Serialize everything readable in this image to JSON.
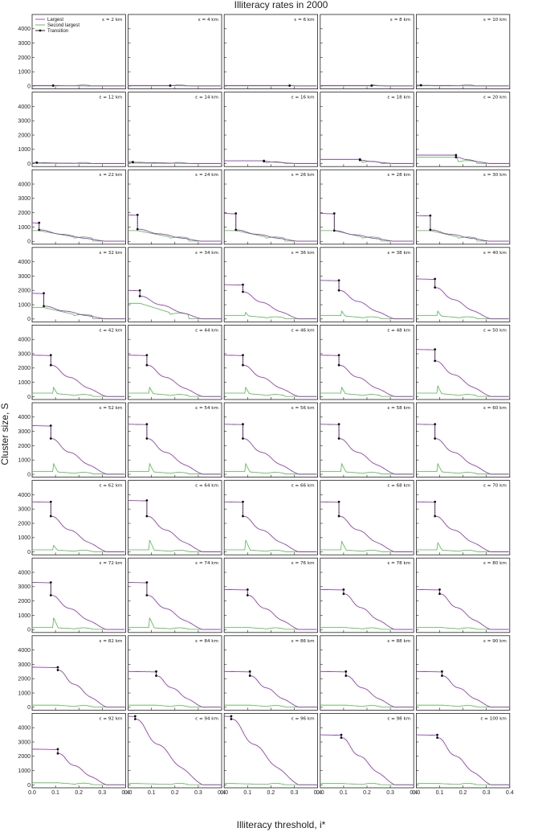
{
  "figure": {
    "title": "Illiteracy rates in 2000",
    "xlabel": "Illiteracy threshold, i*",
    "ylabel": "Cluster size, S",
    "colors": {
      "largest": "#8e44ad",
      "second": "#55b44f",
      "transition": "#111111"
    }
  },
  "chart_data": {
    "type": "line",
    "layout": "10x5 small multiples",
    "xlim": [
      0.0,
      0.4
    ],
    "ylim": [
      -200,
      5000
    ],
    "x_ticks": [
      0.0,
      0.1,
      0.2,
      0.3,
      0.4
    ],
    "x_tick_labels": [
      "0.0",
      "0.1",
      "0.2",
      "0.3",
      "0.4"
    ],
    "y_ticks": [
      0,
      1000,
      2000,
      3000,
      4000
    ],
    "y_tick_labels": [
      "0",
      "1000",
      "2000",
      "3000",
      "4000"
    ],
    "legend": {
      "placement": "top-left of first panel",
      "entries": [
        "Largest",
        "Second largest",
        "Transition"
      ]
    },
    "panel_label_format": "ε = {km} km",
    "panels": [
      {
        "eps": 2,
        "label": "ε = 2 km",
        "t": 0.09,
        "top": 30,
        "bot": 30,
        "plat": 10,
        "pk": 0
      },
      {
        "eps": 4,
        "label": "ε = 4 km",
        "t": 0.18,
        "top": 30,
        "bot": 30,
        "plat": 10,
        "pk": 0
      },
      {
        "eps": 6,
        "label": "ε = 6 km",
        "t": 0.28,
        "top": 30,
        "bot": 30,
        "plat": 10,
        "pk": 0
      },
      {
        "eps": 8,
        "label": "ε = 8 km",
        "t": 0.22,
        "top": 30,
        "bot": 30,
        "plat": 10,
        "pk": 0
      },
      {
        "eps": 10,
        "label": "ε = 10 km",
        "t": 0.02,
        "top": 60,
        "bot": 50,
        "plat": 20,
        "pk": 0
      },
      {
        "eps": 12,
        "label": "ε = 12 km",
        "t": 0.02,
        "top": 80,
        "bot": 70,
        "plat": 30,
        "pk": 0
      },
      {
        "eps": 14,
        "label": "ε = 14 km",
        "t": 0.02,
        "top": 120,
        "bot": 100,
        "plat": 40,
        "pk": 0
      },
      {
        "eps": 16,
        "label": "ε = 16 km",
        "t": 0.17,
        "top": 200,
        "bot": 170,
        "plat": 200,
        "pk": 0
      },
      {
        "eps": 18,
        "label": "ε = 18 km",
        "t": 0.17,
        "top": 300,
        "bot": 250,
        "plat": 300,
        "pk": 0
      },
      {
        "eps": 20,
        "label": "ε = 20 km",
        "t": 0.17,
        "top": 600,
        "bot": 450,
        "plat": 450,
        "pk": 0
      },
      {
        "eps": 22,
        "label": "ε = 22 km",
        "t": 0.03,
        "top": 1300,
        "bot": 800,
        "plat": 750,
        "pk": 0
      },
      {
        "eps": 24,
        "label": "ε = 24 km",
        "t": 0.04,
        "top": 1850,
        "bot": 850,
        "plat": 750,
        "pk": 0
      },
      {
        "eps": 26,
        "label": "ε = 26 km",
        "t": 0.05,
        "top": 1950,
        "bot": 800,
        "plat": 750,
        "pk": 0
      },
      {
        "eps": 28,
        "label": "ε = 28 km",
        "t": 0.06,
        "top": 1950,
        "bot": 750,
        "plat": 750,
        "pk": 0
      },
      {
        "eps": 30,
        "label": "ε = 30 km",
        "t": 0.06,
        "top": 1800,
        "bot": 800,
        "plat": 750,
        "pk": 0
      },
      {
        "eps": 32,
        "label": "ε = 32 km",
        "t": 0.05,
        "top": 1800,
        "bot": 900,
        "plat": 800,
        "pk": 0
      },
      {
        "eps": 34,
        "label": "ε = 34 km",
        "t": 0.05,
        "top": 2000,
        "bot": 1600,
        "plat": 1100,
        "pk": 0
      },
      {
        "eps": 36,
        "label": "ε = 36 km",
        "t": 0.08,
        "top": 2400,
        "bot": 1900,
        "plat": 250,
        "pk": 500
      },
      {
        "eps": 38,
        "label": "ε = 38 km",
        "t": 0.08,
        "top": 2700,
        "bot": 2000,
        "plat": 250,
        "pk": 600
      },
      {
        "eps": 40,
        "label": "ε = 40 km",
        "t": 0.08,
        "top": 2800,
        "bot": 2200,
        "plat": 250,
        "pk": 600
      },
      {
        "eps": 42,
        "label": "ε = 42 km",
        "t": 0.08,
        "top": 2900,
        "bot": 2200,
        "plat": 250,
        "pk": 700
      },
      {
        "eps": 44,
        "label": "ε = 44 km",
        "t": 0.08,
        "top": 2900,
        "bot": 2200,
        "plat": 250,
        "pk": 700
      },
      {
        "eps": 46,
        "label": "ε = 46 km",
        "t": 0.08,
        "top": 2900,
        "bot": 2200,
        "plat": 250,
        "pk": 700
      },
      {
        "eps": 48,
        "label": "ε = 48 km",
        "t": 0.08,
        "top": 2900,
        "bot": 2200,
        "plat": 250,
        "pk": 700
      },
      {
        "eps": 50,
        "label": "ε = 50 km",
        "t": 0.08,
        "top": 3300,
        "bot": 2500,
        "plat": 250,
        "pk": 800
      },
      {
        "eps": 52,
        "label": "ε = 52 km",
        "t": 0.08,
        "top": 3400,
        "bot": 2500,
        "plat": 200,
        "pk": 800
      },
      {
        "eps": 54,
        "label": "ε = 54 km",
        "t": 0.08,
        "top": 3500,
        "bot": 2500,
        "plat": 200,
        "pk": 800
      },
      {
        "eps": 56,
        "label": "ε = 56 km",
        "t": 0.08,
        "top": 3500,
        "bot": 2500,
        "plat": 200,
        "pk": 800
      },
      {
        "eps": 58,
        "label": "ε = 58 km",
        "t": 0.08,
        "top": 3500,
        "bot": 2500,
        "plat": 200,
        "pk": 800
      },
      {
        "eps": 60,
        "label": "ε = 60 km",
        "t": 0.08,
        "top": 3500,
        "bot": 2500,
        "plat": 200,
        "pk": 800
      },
      {
        "eps": 62,
        "label": "ε = 62 km",
        "t": 0.08,
        "top": 3500,
        "bot": 2500,
        "plat": 150,
        "pk": 500
      },
      {
        "eps": 64,
        "label": "ε = 64 km",
        "t": 0.08,
        "top": 3600,
        "bot": 2500,
        "plat": 150,
        "pk": 900
      },
      {
        "eps": 66,
        "label": "ε = 66 km",
        "t": 0.08,
        "top": 3500,
        "bot": 2500,
        "plat": 150,
        "pk": 900
      },
      {
        "eps": 68,
        "label": "ε = 68 km",
        "t": 0.08,
        "top": 3500,
        "bot": 2500,
        "plat": 150,
        "pk": 800
      },
      {
        "eps": 70,
        "label": "ε = 70 km",
        "t": 0.08,
        "top": 3500,
        "bot": 2500,
        "plat": 150,
        "pk": 700
      },
      {
        "eps": 72,
        "label": "ε = 72 km",
        "t": 0.08,
        "top": 3300,
        "bot": 2400,
        "plat": 150,
        "pk": 900
      },
      {
        "eps": 74,
        "label": "ε = 74 km",
        "t": 0.08,
        "top": 3300,
        "bot": 2400,
        "plat": 150,
        "pk": 900
      },
      {
        "eps": 76,
        "label": "ε = 76 km",
        "t": 0.1,
        "top": 2800,
        "bot": 2400,
        "plat": 150,
        "pk": 0
      },
      {
        "eps": 78,
        "label": "ε = 78 km",
        "t": 0.1,
        "top": 2800,
        "bot": 2500,
        "plat": 150,
        "pk": 0
      },
      {
        "eps": 80,
        "label": "ε = 80 km",
        "t": 0.1,
        "top": 2800,
        "bot": 2500,
        "plat": 150,
        "pk": 0
      },
      {
        "eps": 82,
        "label": "ε = 82 km",
        "t": 0.11,
        "top": 2800,
        "bot": 2600,
        "plat": 150,
        "pk": 0
      },
      {
        "eps": 84,
        "label": "ε = 84 km",
        "t": 0.12,
        "top": 2500,
        "bot": 2200,
        "plat": 150,
        "pk": 0
      },
      {
        "eps": 86,
        "label": "ε = 86 km",
        "t": 0.11,
        "top": 2500,
        "bot": 2200,
        "plat": 150,
        "pk": 0
      },
      {
        "eps": 88,
        "label": "ε = 88 km",
        "t": 0.11,
        "top": 2500,
        "bot": 2200,
        "plat": 150,
        "pk": 0
      },
      {
        "eps": 90,
        "label": "ε = 90 km",
        "t": 0.11,
        "top": 2500,
        "bot": 2200,
        "plat": 150,
        "pk": 0
      },
      {
        "eps": 92,
        "label": "ε = 92 km",
        "t": 0.11,
        "top": 2500,
        "bot": 2200,
        "plat": 150,
        "pk": 0
      },
      {
        "eps": 94,
        "label": "ε = 94 km",
        "t": 0.03,
        "top": 4800,
        "bot": 4600,
        "plat": 100,
        "pk": 0
      },
      {
        "eps": 96,
        "label": "ε = 96 km",
        "t": 0.03,
        "top": 4800,
        "bot": 4600,
        "plat": 100,
        "pk": 0
      },
      {
        "eps": 98,
        "label": "ε = 98 km",
        "t": 0.09,
        "top": 3500,
        "bot": 3300,
        "plat": 100,
        "pk": 0
      },
      {
        "eps": 100,
        "label": "ε = 100 km",
        "t": 0.09,
        "top": 3500,
        "bot": 3300,
        "plat": 100,
        "pk": 0
      }
    ]
  }
}
